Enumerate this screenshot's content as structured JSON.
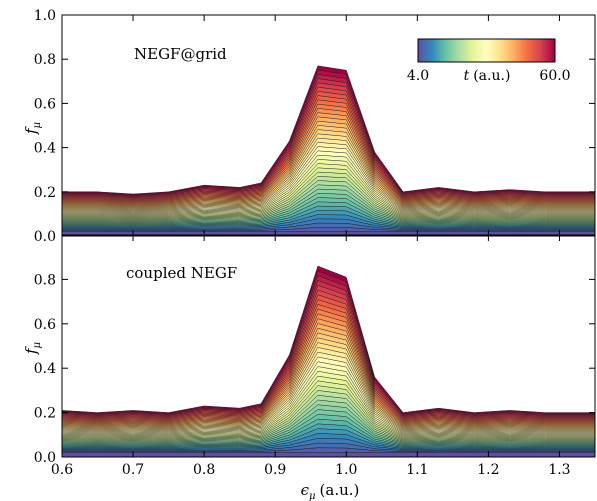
{
  "chart_data": [
    {
      "type": "area",
      "panel": "top",
      "annotation": "NEGF@grid",
      "ylabel": "f_μ",
      "ylabel_main": "f",
      "ylabel_sub": "μ",
      "xlim": [
        0.6,
        1.35
      ],
      "ylim": [
        0.0,
        1.0
      ],
      "yticks": [
        "0.0",
        "0.2",
        "0.4",
        "0.6",
        "0.8",
        "1.0"
      ],
      "color_parameter": "t",
      "color_range": [
        4.0,
        60.0
      ],
      "x": [
        0.6,
        0.65,
        0.7,
        0.75,
        0.8,
        0.85,
        0.88,
        0.92,
        0.96,
        1.0,
        1.04,
        1.08,
        1.13,
        1.18,
        1.23,
        1.28,
        1.35
      ],
      "final_profile": [
        0.2,
        0.2,
        0.19,
        0.2,
        0.23,
        0.22,
        0.24,
        0.43,
        0.77,
        0.75,
        0.38,
        0.2,
        0.22,
        0.2,
        0.21,
        0.2,
        0.2
      ],
      "initial_level": 0.02,
      "n_curves": 40
    },
    {
      "type": "area",
      "panel": "bottom",
      "annotation": "coupled NEGF",
      "ylabel": "f_μ",
      "ylabel_main": "f",
      "ylabel_sub": "μ",
      "xlabel": "ε_μ (a.u.)",
      "xlabel_main": "ϵ",
      "xlabel_sub": "μ",
      "xlabel_unit": "(a.u.)",
      "xlim": [
        0.6,
        1.35
      ],
      "ylim": [
        0.0,
        1.0
      ],
      "xticks": [
        "0.6",
        "0.7",
        "0.8",
        "0.9",
        "1.0",
        "1.1",
        "1.2",
        "1.3"
      ],
      "yticks": [
        "0.0",
        "0.2",
        "0.4",
        "0.6",
        "0.8"
      ],
      "color_parameter": "t",
      "color_range": [
        4.0,
        60.0
      ],
      "x": [
        0.6,
        0.65,
        0.7,
        0.75,
        0.8,
        0.85,
        0.88,
        0.92,
        0.96,
        1.0,
        1.04,
        1.08,
        1.13,
        1.18,
        1.23,
        1.28,
        1.35
      ],
      "final_profile": [
        0.21,
        0.2,
        0.21,
        0.2,
        0.23,
        0.22,
        0.24,
        0.46,
        0.86,
        0.81,
        0.36,
        0.2,
        0.22,
        0.2,
        0.21,
        0.2,
        0.2
      ],
      "initial_level": 0.02,
      "n_curves": 40
    }
  ],
  "colorbar": {
    "min_label": "4.0",
    "max_label": "60.0",
    "label_main": "t",
    "label_unit": "(a.u.)",
    "colormap": [
      "#5e4fa2",
      "#3288bd",
      "#66c2a5",
      "#abdda4",
      "#e6f598",
      "#ffffbf",
      "#fee08b",
      "#fdae61",
      "#f46d43",
      "#d53e4f",
      "#9e0142"
    ]
  }
}
